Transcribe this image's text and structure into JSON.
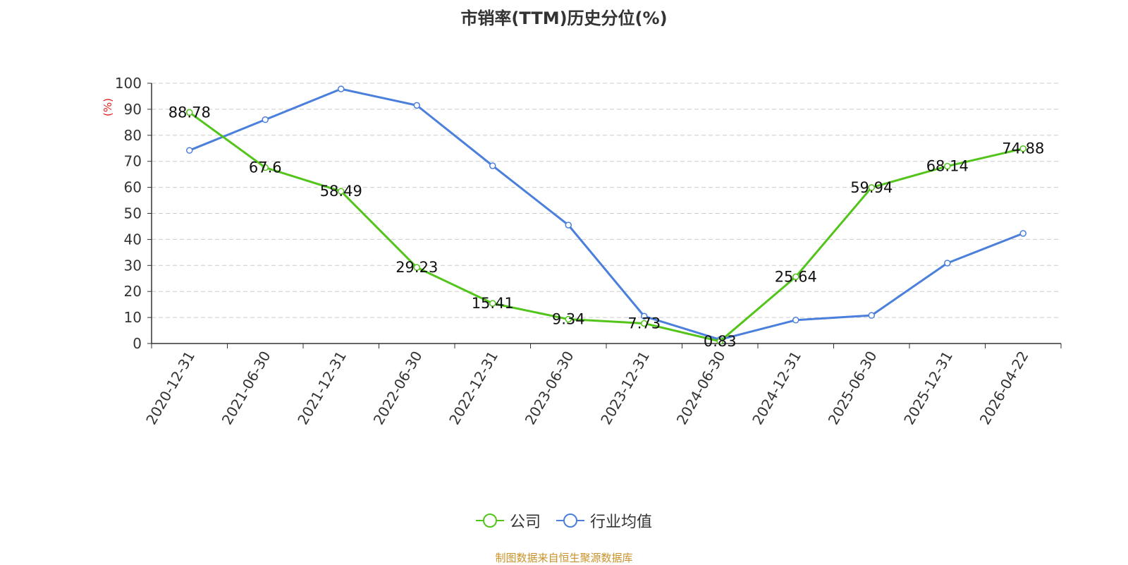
{
  "chart_data": {
    "type": "line",
    "title": "市销率(TTM)历史分位(%)",
    "ylabel": "(%)",
    "xlabel": "",
    "ylim": [
      0,
      100
    ],
    "yticks": [
      0,
      10,
      20,
      30,
      40,
      50,
      60,
      70,
      80,
      90,
      100
    ],
    "categories": [
      "2020-12-31",
      "2021-06-30",
      "2021-12-31",
      "2022-06-30",
      "2022-12-31",
      "2023-06-30",
      "2023-12-31",
      "2024-06-30",
      "2024-12-31",
      "2025-06-30",
      "2025-12-31",
      "2026-04-22"
    ],
    "series": [
      {
        "name": "公司",
        "color": "#52c41a",
        "values": [
          88.78,
          67.6,
          58.49,
          29.23,
          15.41,
          9.34,
          7.73,
          0.83,
          25.64,
          59.94,
          68.14,
          74.88
        ],
        "labels": [
          "88.78",
          "67.6",
          "58.49",
          "29.23",
          "15.41",
          "9.34",
          "7.73",
          "0.83",
          "25.64",
          "59.94",
          "68.14",
          "74.88"
        ]
      },
      {
        "name": "行业均值",
        "color": "#4a7fdc",
        "values": [
          74.2,
          86.0,
          97.8,
          91.5,
          68.3,
          45.5,
          10.5,
          1.5,
          9.0,
          10.8,
          30.9,
          42.3
        ]
      }
    ],
    "grid": true,
    "legend_position": "bottom"
  },
  "source": "制图数据来自恒生聚源数据库"
}
